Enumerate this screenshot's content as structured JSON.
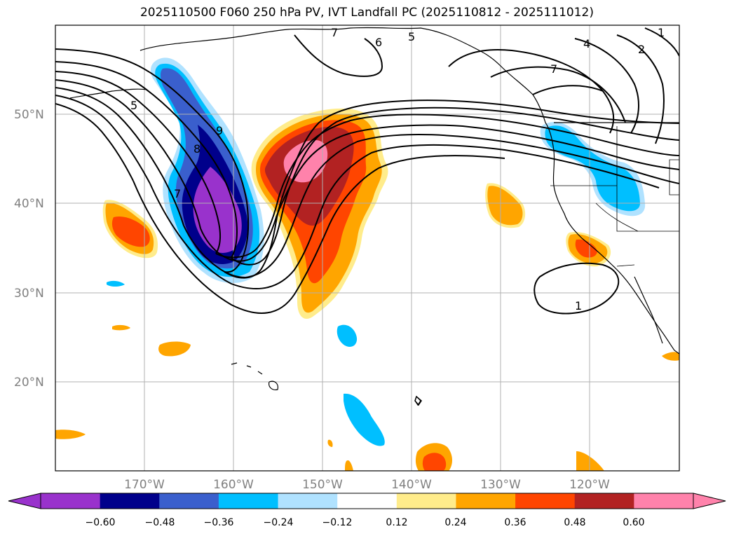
{
  "title": "2025110500 F060 250 hPa PV, IVT Landfall PC (2025110812 - 2025111012)",
  "latitude_labels": [
    "50°N",
    "40°N",
    "30°N",
    "20°N"
  ],
  "longitude_labels": [
    "170°W",
    "160°W",
    "150°W",
    "140°W",
    "130°W",
    "120°W"
  ],
  "contour_labels": [
    "7",
    "6",
    "5",
    "4",
    "2",
    "1",
    "7",
    "5",
    "9",
    "8",
    "7",
    "1"
  ],
  "colorbar": {
    "colors": [
      "#9932CC",
      "#00008B",
      "#3A5FCD",
      "#00BFFF",
      "#B0E2FF",
      "#FFFFFF",
      "#FFEC8B",
      "#FFA500",
      "#FF4500",
      "#B22222",
      "#FF82AB"
    ],
    "under_color": "#9932CC",
    "over_color": "#FF82AB",
    "tick_labels": [
      "−0.60",
      "−0.48",
      "−0.36",
      "−0.24",
      "−0.12",
      "0.12",
      "0.24",
      "0.36",
      "0.48",
      "0.60"
    ]
  }
}
